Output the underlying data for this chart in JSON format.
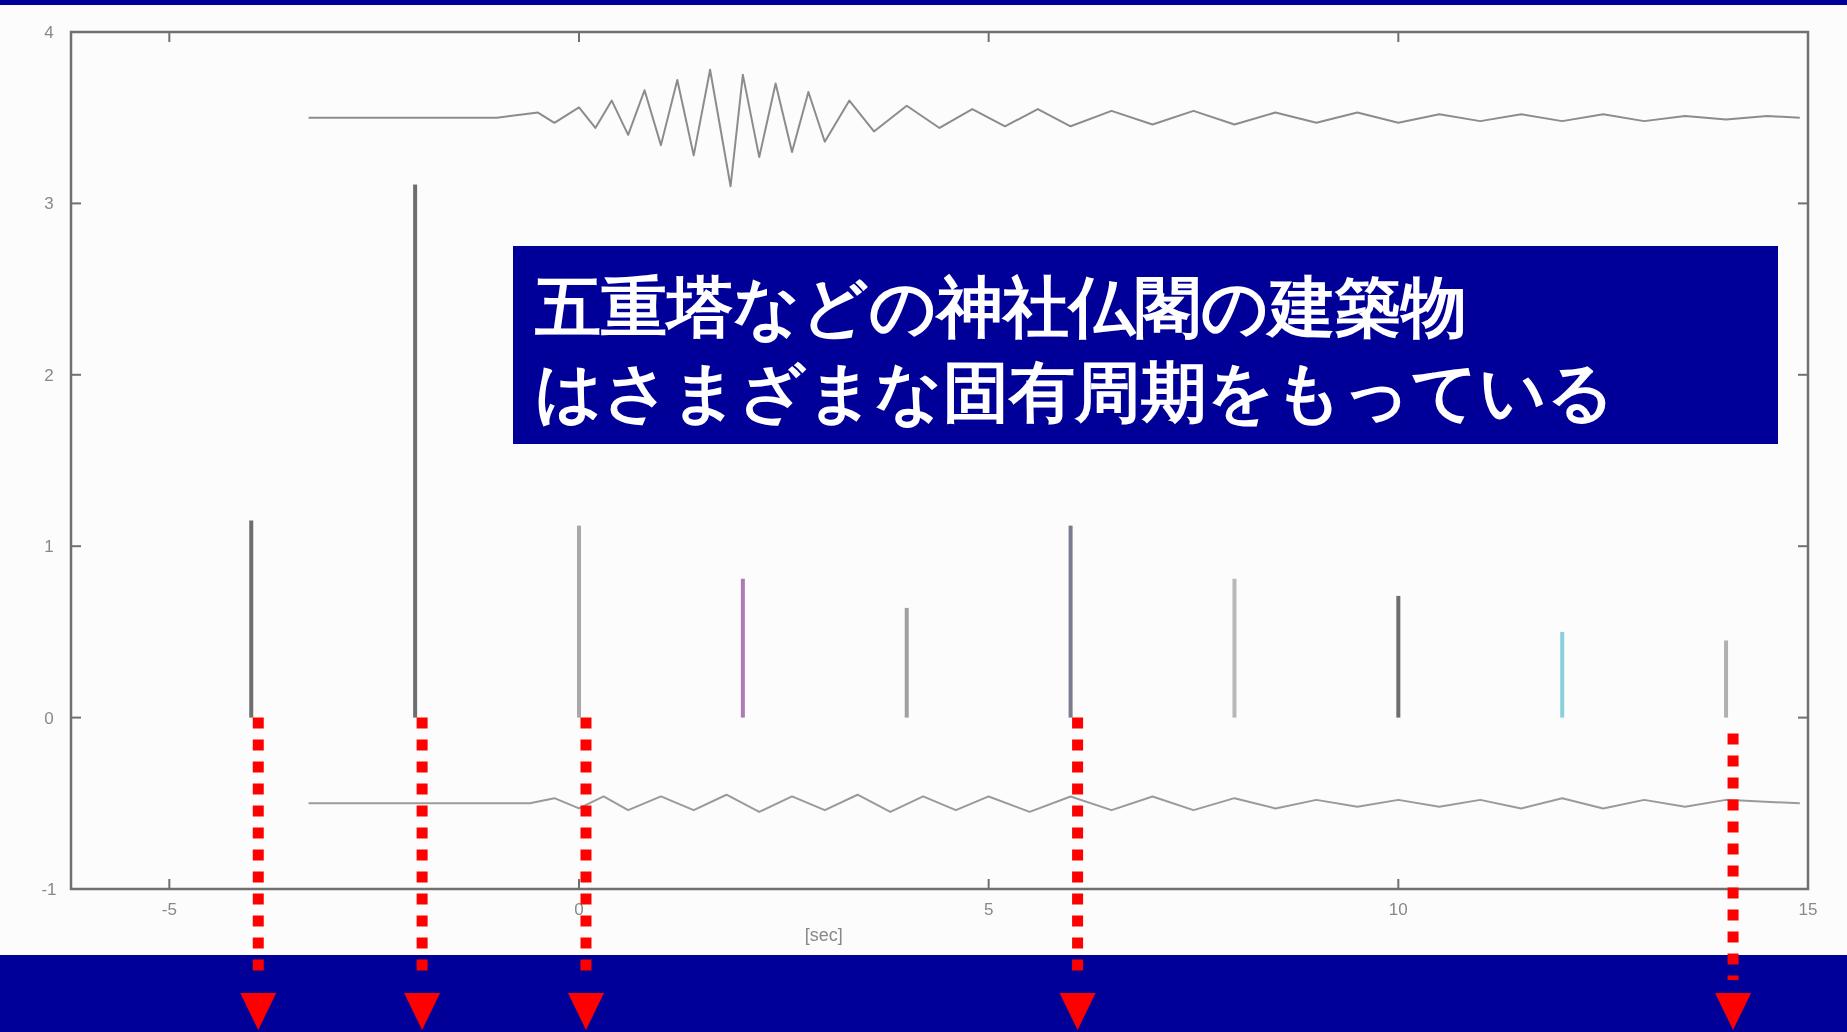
{
  "chart_data": {
    "type": "bar",
    "xlabel": "[sec]",
    "xlim": [
      -6.2,
      15
    ],
    "ylim": [
      -1,
      4
    ],
    "xticks": [
      -5,
      0,
      5,
      10,
      15
    ],
    "yticks": [
      -1,
      0,
      1,
      2,
      3,
      4
    ],
    "tick_labels": "xy",
    "grid": false,
    "annotations": [
      "五重塔などの神社仏閣の建築物",
      "はさまざまな固有周期をもっている"
    ],
    "series": [
      {
        "x": [
          -4,
          -2,
          0,
          2,
          4,
          6,
          8,
          10,
          12,
          14
        ],
        "values": [
          1.15,
          3.11,
          1.12,
          0.81,
          0.64,
          1.12,
          0.81,
          0.71,
          0.5,
          0.45
        ],
        "colors": [
          "#6e6e6e",
          "#6e6e6e",
          "#a8a8a8",
          "#b07ab8",
          "#a0a0a0",
          "#7a7a90",
          "#b8b8b8",
          "#6e6e6e",
          "#8ccfdc",
          "#b0b0b0"
        ]
      },
      {
        "type": "line",
        "color": "#8c8c8c",
        "x": [
          -3.3,
          -1.0,
          -0.5,
          -0.3,
          0,
          0.2,
          0.4,
          0.6,
          0.8,
          1.0,
          1.2,
          1.4,
          1.6,
          1.85,
          2.0,
          2.2,
          2.4,
          2.6,
          2.8,
          3.0,
          3.3,
          3.6,
          4.0,
          4.4,
          4.8,
          5.2,
          5.6,
          6.0,
          6.5,
          7.0,
          7.5,
          8.0,
          8.5,
          9.0,
          9.5,
          10.0,
          10.5,
          11,
          11.5,
          12,
          12.5,
          13,
          13.5,
          14,
          14.5,
          14.9
        ],
        "values": [
          3.5,
          3.5,
          3.53,
          3.47,
          3.56,
          3.44,
          3.6,
          3.4,
          3.66,
          3.34,
          3.72,
          3.28,
          3.78,
          3.1,
          3.75,
          3.27,
          3.7,
          3.3,
          3.65,
          3.36,
          3.6,
          3.42,
          3.57,
          3.44,
          3.55,
          3.45,
          3.55,
          3.45,
          3.54,
          3.46,
          3.54,
          3.46,
          3.53,
          3.47,
          3.53,
          3.47,
          3.52,
          3.48,
          3.52,
          3.48,
          3.52,
          3.48,
          3.51,
          3.49,
          3.51,
          3.5
        ]
      },
      {
        "type": "line",
        "color": "#9a9a9a",
        "x": [
          -3.3,
          -0.6,
          -0.3,
          0,
          0.3,
          0.6,
          1,
          1.4,
          1.8,
          2.2,
          2.6,
          3,
          3.4,
          3.8,
          4.2,
          4.6,
          5,
          5.5,
          6,
          6.5,
          7,
          7.5,
          8,
          8.5,
          9,
          9.5,
          10,
          10.5,
          11,
          11.5,
          12,
          12.5,
          13,
          13.5,
          14,
          14.9
        ],
        "values": [
          -0.5,
          -0.5,
          -0.47,
          -0.53,
          -0.46,
          -0.54,
          -0.46,
          -0.54,
          -0.45,
          -0.55,
          -0.46,
          -0.54,
          -0.45,
          -0.55,
          -0.46,
          -0.54,
          -0.46,
          -0.55,
          -0.46,
          -0.54,
          -0.46,
          -0.54,
          -0.47,
          -0.53,
          -0.48,
          -0.52,
          -0.48,
          -0.52,
          -0.48,
          -0.53,
          -0.47,
          -0.53,
          -0.48,
          -0.52,
          -0.48,
          -0.5
        ]
      }
    ]
  }
}
